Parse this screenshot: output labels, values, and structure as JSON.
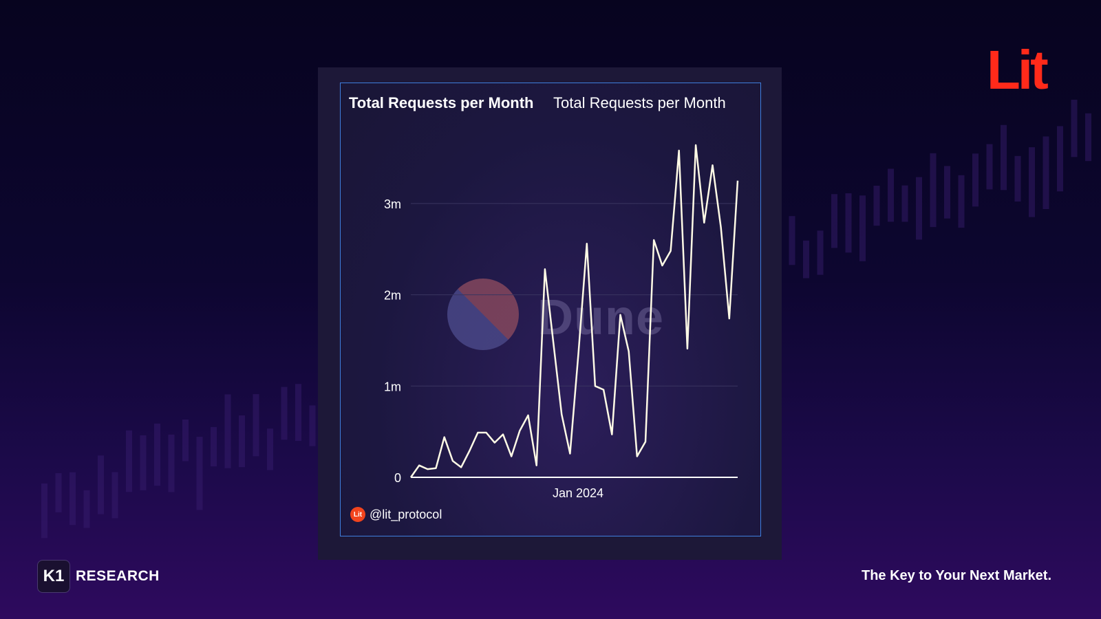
{
  "brand": {
    "lit_logo": "Lit",
    "k1_badge": "K1",
    "k1_label": "RESEARCH",
    "tagline": "The Key to Your Next Market."
  },
  "card": {
    "title_left": "Total Requests per Month",
    "title_right": "Total Requests per Month",
    "watermark": "Dune",
    "handle": "@lit_protocol",
    "handle_logo": "Lit"
  },
  "colors": {
    "accent_border": "#3f7fe0",
    "line": "#fffbe6",
    "lit_red": "#ff2a1a"
  },
  "chart_data": {
    "type": "line",
    "title": "Total Requests per Month",
    "xlabel": "",
    "ylabel": "",
    "x_tick_labels": [
      "Jan 2024"
    ],
    "y_ticks": [
      0,
      1000000,
      2000000,
      3000000
    ],
    "y_tick_labels": [
      "0",
      "1m",
      "2m",
      "3m"
    ],
    "ylim": [
      0,
      3700000
    ],
    "grid": true,
    "legend": "none",
    "series": [
      {
        "values": [
          0,
          130000,
          90000,
          100000,
          440000,
          180000,
          110000,
          290000,
          490000,
          490000,
          380000,
          470000,
          230000,
          510000,
          680000,
          130000,
          2280000,
          1480000,
          690000,
          260000,
          1360000,
          2560000,
          1000000,
          960000,
          470000,
          1780000,
          1380000,
          230000,
          390000,
          2600000,
          2320000,
          2480000,
          3580000,
          1410000,
          3640000,
          2790000,
          3420000,
          2740000,
          1740000,
          3250000
        ]
      }
    ]
  }
}
